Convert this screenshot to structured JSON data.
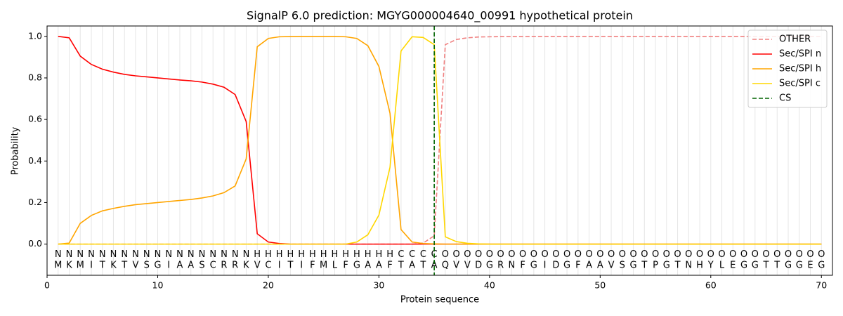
{
  "chart_data": {
    "type": "line",
    "title": "SignalP 6.0 prediction: MGYG000004640_00991 hypothetical protein",
    "x_label": "Protein sequence",
    "y_label": "Probability",
    "xlim": [
      0,
      71
    ],
    "ylim": [
      -0.15,
      1.05
    ],
    "xticks": [
      0,
      10,
      20,
      30,
      40,
      50,
      60,
      70
    ],
    "yticks": [
      {
        "value": 0,
        "label": "0.0"
      },
      0.2,
      0.4,
      0.6,
      0.8,
      {
        "value": 1,
        "label": "1.0"
      }
    ],
    "x": [
      1,
      2,
      3,
      4,
      5,
      6,
      7,
      8,
      9,
      10,
      11,
      12,
      13,
      14,
      15,
      16,
      17,
      18,
      19,
      20,
      21,
      22,
      23,
      24,
      25,
      26,
      27,
      28,
      29,
      30,
      31,
      32,
      33,
      34,
      35,
      36,
      37,
      38,
      39,
      40,
      41,
      42,
      43,
      44,
      45,
      46,
      47,
      48,
      49,
      50,
      51,
      52,
      53,
      54,
      55,
      56,
      57,
      58,
      59,
      60,
      61,
      62,
      63,
      64,
      65,
      66,
      67,
      68,
      69,
      70
    ],
    "residues": [
      "M",
      "K",
      "M",
      "I",
      "T",
      "K",
      "T",
      "V",
      "S",
      "G",
      "I",
      "A",
      "A",
      "S",
      "C",
      "R",
      "R",
      "K",
      "V",
      "C",
      "I",
      "T",
      "I",
      "F",
      "M",
      "L",
      "F",
      "G",
      "A",
      "A",
      "F",
      "T",
      "A",
      "T",
      "A",
      "Q",
      "V",
      "V",
      "D",
      "G",
      "R",
      "N",
      "F",
      "G",
      "I",
      "D",
      "G",
      "F",
      "A",
      "A",
      "V",
      "S",
      "G",
      "T",
      "P",
      "G",
      "T",
      "N",
      "H",
      "Y",
      "L",
      "E",
      "G",
      "G",
      "T",
      "T",
      "G",
      "G",
      "E",
      "G"
    ],
    "region_labels": [
      "N",
      "N",
      "N",
      "N",
      "N",
      "N",
      "N",
      "N",
      "N",
      "N",
      "N",
      "N",
      "N",
      "N",
      "N",
      "N",
      "N",
      "N",
      "H",
      "H",
      "H",
      "H",
      "H",
      "H",
      "H",
      "H",
      "H",
      "H",
      "H",
      "H",
      "H",
      "C",
      "C",
      "C",
      "C",
      "O",
      "O",
      "O",
      "O",
      "O",
      "O",
      "O",
      "O",
      "O",
      "O",
      "O",
      "O",
      "O",
      "O",
      "O",
      "O",
      "O",
      "O",
      "O",
      "O",
      "O",
      "O",
      "O",
      "O",
      "O",
      "O",
      "O",
      "O",
      "O",
      "O",
      "O",
      "O",
      "O",
      "O",
      "O"
    ],
    "region_label_colors": {
      "N": "#ff0000",
      "H": "#ffa500",
      "C": "#ffd700",
      "O": "#808080"
    },
    "vertical_grid": true,
    "legend_position": "upper right",
    "series": [
      {
        "name": "OTHER",
        "color": "#f08080",
        "dashed": true,
        "values": [
          0,
          0,
          0,
          0,
          0,
          0,
          0,
          0,
          0,
          0,
          0,
          0,
          0,
          0,
          0,
          0,
          0,
          0,
          0,
          0,
          0,
          0,
          0,
          0,
          0,
          0,
          0,
          0,
          0,
          0,
          0,
          0,
          0,
          0.005,
          0.04,
          0.96,
          0.985,
          0.993,
          0.997,
          0.998,
          0.999,
          0.999,
          0.999,
          1,
          1,
          1,
          1,
          1,
          1,
          1,
          1,
          1,
          1,
          1,
          1,
          1,
          1,
          1,
          1,
          1,
          1,
          1,
          1,
          1,
          1,
          1,
          1,
          1,
          1,
          1
        ]
      },
      {
        "name": "Sec/SPI n",
        "color": "#ff0000",
        "values": [
          1.0,
          0.993,
          0.905,
          0.865,
          0.842,
          0.828,
          0.817,
          0.81,
          0.805,
          0.8,
          0.795,
          0.79,
          0.786,
          0.78,
          0.77,
          0.755,
          0.72,
          0.59,
          0.05,
          0.01,
          0.003,
          0,
          0,
          0,
          0,
          0,
          0,
          0,
          0,
          0,
          0,
          0,
          0,
          0,
          0,
          0,
          0,
          0,
          0,
          0,
          0,
          0,
          0,
          0,
          0,
          0,
          0,
          0,
          0,
          0,
          0,
          0,
          0,
          0,
          0,
          0,
          0,
          0,
          0,
          0,
          0,
          0,
          0,
          0,
          0,
          0,
          0,
          0,
          0,
          0
        ]
      },
      {
        "name": "Sec/SPI h",
        "color": "#ffa500",
        "values": [
          0,
          0.005,
          0.1,
          0.138,
          0.16,
          0.172,
          0.182,
          0.19,
          0.195,
          0.2,
          0.205,
          0.21,
          0.215,
          0.222,
          0.232,
          0.248,
          0.28,
          0.41,
          0.95,
          0.99,
          0.998,
          0.999,
          1,
          1,
          1,
          1,
          0.998,
          0.99,
          0.955,
          0.855,
          0.63,
          0.07,
          0.01,
          0.003,
          0.001,
          0,
          0,
          0,
          0,
          0,
          0,
          0,
          0,
          0,
          0,
          0,
          0,
          0,
          0,
          0,
          0,
          0,
          0,
          0,
          0,
          0,
          0,
          0,
          0,
          0,
          0,
          0,
          0,
          0,
          0,
          0,
          0,
          0,
          0,
          0
        ]
      },
      {
        "name": "Sec/SPI c",
        "color": "#ffd700",
        "values": [
          0,
          0,
          0,
          0,
          0,
          0,
          0,
          0,
          0,
          0,
          0,
          0,
          0,
          0,
          0,
          0,
          0,
          0,
          0,
          0,
          0,
          0,
          0,
          0,
          0,
          0,
          0,
          0.01,
          0.045,
          0.14,
          0.37,
          0.93,
          0.998,
          0.995,
          0.96,
          0.035,
          0.012,
          0.004,
          0.001,
          0,
          0,
          0,
          0,
          0,
          0,
          0,
          0,
          0,
          0,
          0,
          0,
          0,
          0,
          0,
          0,
          0,
          0,
          0,
          0,
          0,
          0,
          0,
          0,
          0,
          0,
          0,
          0,
          0,
          0,
          0
        ]
      }
    ],
    "cs": {
      "name": "CS",
      "color": "#006400",
      "x": 35
    }
  }
}
